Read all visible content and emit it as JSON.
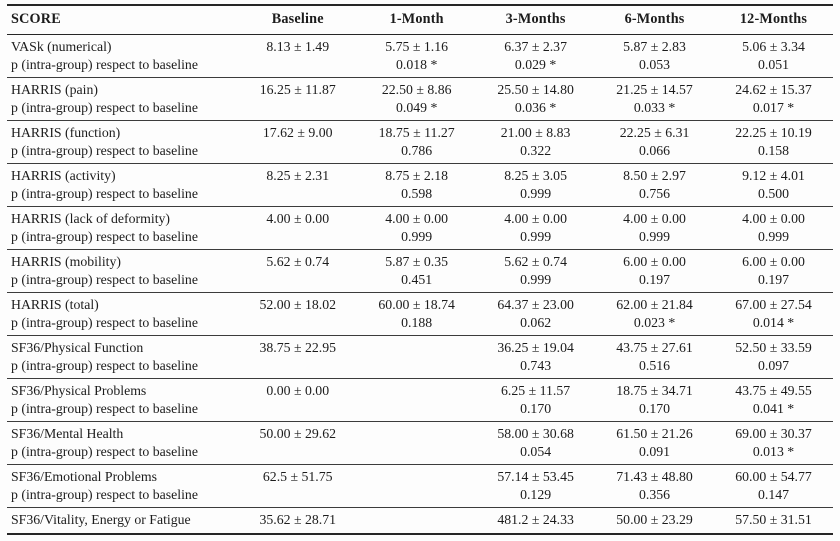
{
  "table": {
    "columns": [
      "SCORE",
      "Baseline",
      "1-Month",
      "3-Months",
      "6-Months",
      "12-Months"
    ],
    "p_row_label": "p (intra-group) respect to baseline",
    "rows": [
      {
        "score": "VASk (numerical)",
        "values": [
          "8.13 ± 1.49",
          "5.75 ± 1.16",
          "6.37 ± 2.37",
          "5.87 ± 2.83",
          "5.06 ± 3.34"
        ],
        "p": [
          "",
          "0.018 *",
          "0.029 *",
          "0.053",
          "0.051"
        ]
      },
      {
        "score": "HARRIS (pain)",
        "values": [
          "16.25 ± 11.87",
          "22.50 ± 8.86",
          "25.50 ± 14.80",
          "21.25 ± 14.57",
          "24.62 ± 15.37"
        ],
        "p": [
          "",
          "0.049 *",
          "0.036 *",
          "0.033 *",
          "0.017 *"
        ]
      },
      {
        "score": "HARRIS (function)",
        "values": [
          "17.62 ± 9.00",
          "18.75 ± 11.27",
          "21.00 ± 8.83",
          "22.25 ± 6.31",
          "22.25 ± 10.19"
        ],
        "p": [
          "",
          "0.786",
          "0.322",
          "0.066",
          "0.158"
        ]
      },
      {
        "score": "HARRIS (activity)",
        "values": [
          "8.25 ± 2.31",
          "8.75 ± 2.18",
          "8.25 ± 3.05",
          "8.50 ± 2.97",
          "9.12 ± 4.01"
        ],
        "p": [
          "",
          "0.598",
          "0.999",
          "0.756",
          "0.500"
        ]
      },
      {
        "score": "HARRIS (lack of deformity)",
        "values": [
          "4.00 ± 0.00",
          "4.00 ± 0.00",
          "4.00 ± 0.00",
          "4.00 ± 0.00",
          "4.00 ± 0.00"
        ],
        "p": [
          "",
          "0.999",
          "0.999",
          "0.999",
          "0.999"
        ]
      },
      {
        "score": "HARRIS (mobility)",
        "values": [
          "5.62 ± 0.74",
          "5.87 ± 0.35",
          "5.62 ± 0.74",
          "6.00 ± 0.00",
          "6.00 ± 0.00"
        ],
        "p": [
          "",
          "0.451",
          "0.999",
          "0.197",
          "0.197"
        ]
      },
      {
        "score": "HARRIS (total)",
        "values": [
          "52.00 ± 18.02",
          "60.00 ± 18.74",
          "64.37 ± 23.00",
          "62.00 ± 21.84",
          "67.00 ± 27.54"
        ],
        "p": [
          "",
          "0.188",
          "0.062",
          "0.023 *",
          "0.014 *"
        ]
      },
      {
        "score": "SF36/Physical Function",
        "values": [
          "38.75 ± 22.95",
          "",
          "36.25 ± 19.04",
          "43.75 ± 27.61",
          "52.50 ± 33.59"
        ],
        "p": [
          "",
          "",
          "0.743",
          "0.516",
          "0.097"
        ]
      },
      {
        "score": "SF36/Physical Problems",
        "values": [
          "0.00 ± 0.00",
          "",
          "6.25 ± 11.57",
          "18.75 ± 34.71",
          "43.75 ± 49.55"
        ],
        "p": [
          "",
          "",
          "0.170",
          "0.170",
          "0.041 *"
        ]
      },
      {
        "score": "SF36/Mental Health",
        "values": [
          "50.00 ± 29.62",
          "",
          "58.00 ± 30.68",
          "61.50 ± 21.26",
          "69.00 ± 30.37"
        ],
        "p": [
          "",
          "",
          "0.054",
          "0.091",
          "0.013 *"
        ]
      },
      {
        "score": "SF36/Emotional Problems",
        "values": [
          "62.5 ± 51.75",
          "",
          "57.14 ± 53.45",
          "71.43 ± 48.80",
          "60.00 ± 54.77"
        ],
        "p": [
          "",
          "",
          "0.129",
          "0.356",
          "0.147"
        ]
      },
      {
        "score": "SF36/Vitality, Energy or Fatigue",
        "values": [
          "35.62 ± 28.71",
          "",
          "481.2 ± 24.33",
          "50.00 ± 23.29",
          "57.50 ± 31.51"
        ],
        "p": null
      }
    ]
  }
}
